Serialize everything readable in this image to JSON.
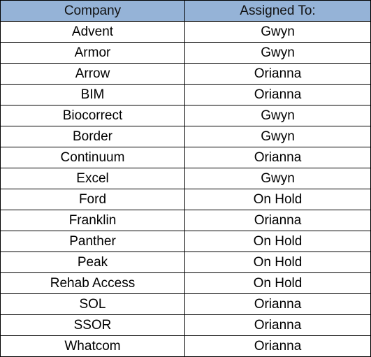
{
  "table": {
    "header_bg": "#95b3d7",
    "columns": [
      "Company",
      "Assigned To:"
    ],
    "rows": [
      [
        "Advent",
        "Gwyn"
      ],
      [
        "Armor",
        "Gwyn"
      ],
      [
        "Arrow",
        "Orianna"
      ],
      [
        "BIM",
        "Orianna"
      ],
      [
        "Biocorrect",
        "Gwyn"
      ],
      [
        "Border",
        "Gwyn"
      ],
      [
        "Continuum",
        "Orianna"
      ],
      [
        "Excel",
        "Gwyn"
      ],
      [
        "Ford",
        "On Hold"
      ],
      [
        "Franklin",
        "Orianna"
      ],
      [
        "Panther",
        "On Hold"
      ],
      [
        "Peak",
        "On Hold"
      ],
      [
        "Rehab Access",
        "On Hold"
      ],
      [
        "SOL",
        "Orianna"
      ],
      [
        "SSOR",
        "Orianna"
      ],
      [
        "Whatcom",
        "Orianna"
      ]
    ]
  }
}
